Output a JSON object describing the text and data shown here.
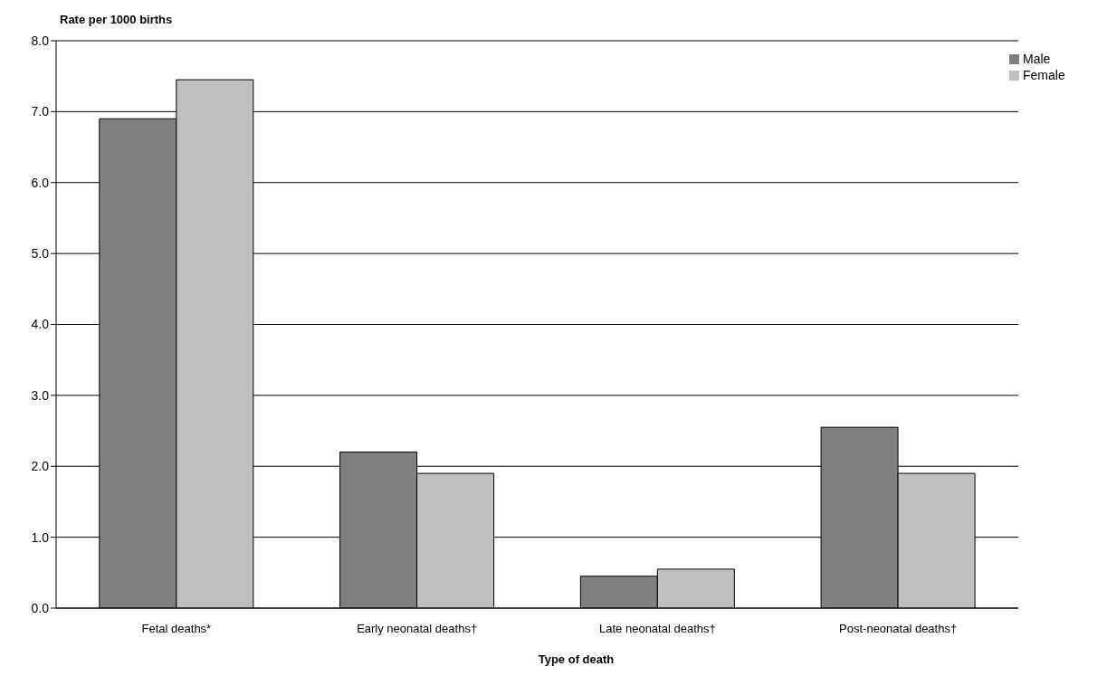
{
  "chart_data": {
    "type": "bar",
    "ylabel": "Rate per 1000 births",
    "xlabel": "Type of death",
    "categories": [
      "Fetal deaths*",
      "Early neonatal deaths†",
      "Late neonatal deaths†",
      "Post-neonatal deaths†"
    ],
    "series": [
      {
        "name": "Male",
        "color": "#808080",
        "values": [
          6.9,
          2.2,
          0.45,
          2.55
        ]
      },
      {
        "name": "Female",
        "color": "#c0c0c0",
        "values": [
          7.45,
          1.9,
          0.55,
          1.9
        ]
      }
    ],
    "ylim": [
      0,
      8
    ],
    "yticks": [
      {
        "value": 0,
        "label": "0.0"
      },
      {
        "value": 1,
        "label": "1.0"
      },
      {
        "value": 2,
        "label": "2.0"
      },
      {
        "value": 3,
        "label": "3.0"
      },
      {
        "value": 4,
        "label": "4.0"
      },
      {
        "value": 5,
        "label": "5.0"
      },
      {
        "value": 6,
        "label": "6.0"
      },
      {
        "value": 7,
        "label": "7.0"
      },
      {
        "value": 8,
        "label": "8.0"
      }
    ],
    "grid": "y",
    "legend": "top right"
  }
}
